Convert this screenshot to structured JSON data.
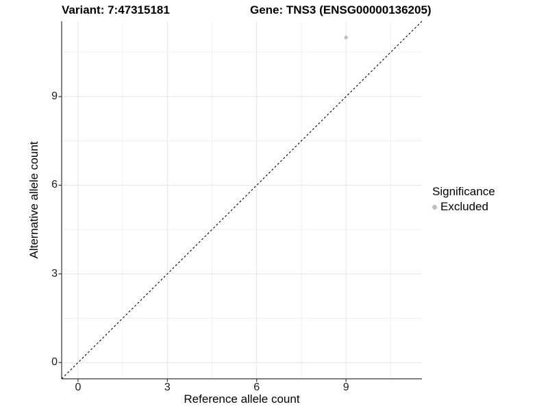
{
  "titles": {
    "variant": "Variant: 7:47315181",
    "gene": "Gene: TNS3 (ENSG00000136205)"
  },
  "chart_data": {
    "type": "scatter",
    "xlabel": "Reference allele count",
    "ylabel": "Alternative allele count",
    "xlim": [
      -0.55,
      11.55
    ],
    "ylim": [
      -0.55,
      11.55
    ],
    "x_ticks": [
      0,
      3,
      6,
      9
    ],
    "y_ticks": [
      0,
      3,
      6,
      9
    ],
    "x_minor_ticks": [
      1.5,
      4.5,
      7.5,
      10.5
    ],
    "y_minor_ticks": [
      1.5,
      4.5,
      7.5,
      10.5
    ],
    "grid": true,
    "series": [
      {
        "name": "Excluded",
        "color": "#bebebe",
        "points": [
          {
            "x": 9,
            "y": 11
          }
        ]
      }
    ],
    "reference_line": {
      "type": "identity",
      "from": [
        -0.55,
        -0.55
      ],
      "to": [
        11.55,
        11.55
      ],
      "style": "dashed",
      "color": "#000000"
    },
    "legend": {
      "title": "Significance",
      "position": "right",
      "items": [
        {
          "label": "Excluded",
          "color": "#bebebe"
        }
      ]
    }
  },
  "colors": {
    "background": "#ffffff",
    "grid_major": "#e4e4e4",
    "grid_minor": "#f0f0f0",
    "axis_line": "#333333",
    "tick_mark": "#333333",
    "point": "#bebebe",
    "text": "#000000"
  }
}
